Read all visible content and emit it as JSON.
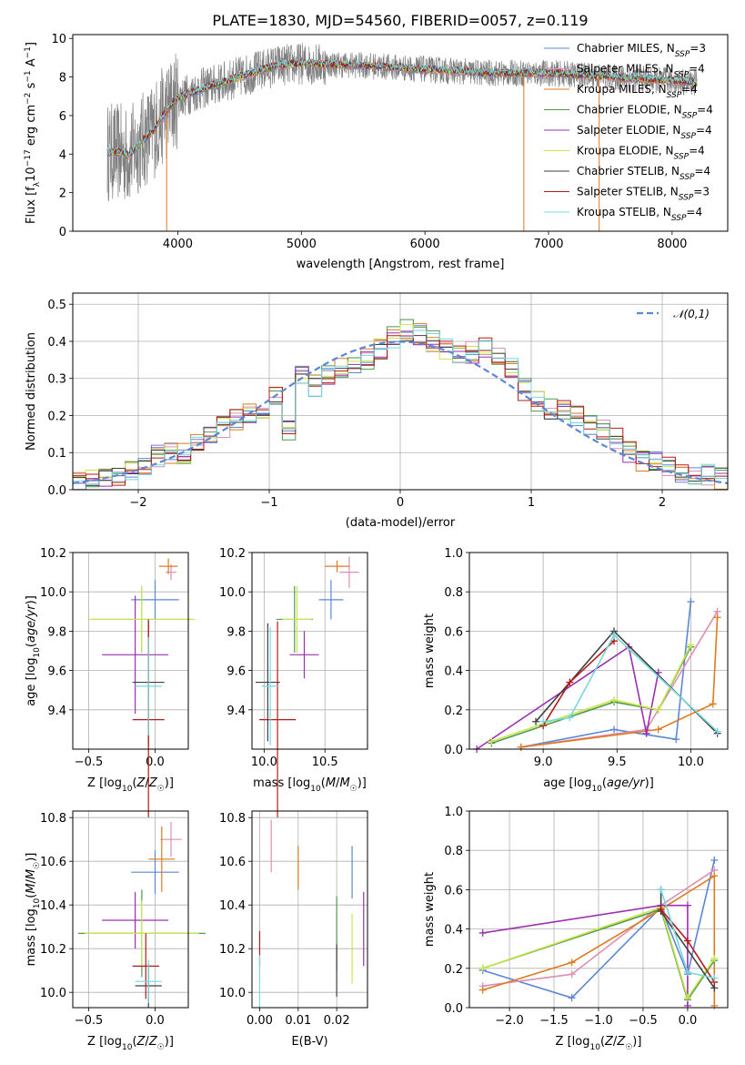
{
  "title": "PLATE=1830, MJD=54560, FIBERID=0057, z=0.119",
  "models": [
    {
      "name": "Chabrier MILES",
      "nssp": "3",
      "color": "#5B87D7"
    },
    {
      "name": "Salpeter MILES",
      "nssp": "4",
      "color": "#DE8EB8"
    },
    {
      "name": "Kroupa MILES",
      "nssp": "4",
      "color": "#E07A1C"
    },
    {
      "name": "Chabrier ELODIE",
      "nssp": "4",
      "color": "#4E9A4E"
    },
    {
      "name": "Salpeter ELODIE",
      "nssp": "4",
      "color": "#9B30B0"
    },
    {
      "name": "Kroupa ELODIE",
      "nssp": "4",
      "color": "#C8E64A"
    },
    {
      "name": "Chabrier STELIB",
      "nssp": "4",
      "color": "#404040"
    },
    {
      "name": "Salpeter STELIB",
      "nssp": "3",
      "color": "#B81818"
    },
    {
      "name": "Kroupa STELIB",
      "nssp": "4",
      "color": "#74D8DE"
    }
  ],
  "data_color": "#808080",
  "chart_data": [
    {
      "id": "spectrum",
      "type": "line",
      "xlabel": "wavelength [Angstrom, rest frame]",
      "ylabel": "Flux [f_λ 10^-17 erg cm^-2 s^-1 A^-1]",
      "xlim": [
        3150,
        8450
      ],
      "ylim": [
        0,
        10.2
      ],
      "xticks": [
        4000,
        5000,
        6000,
        7000,
        8000
      ],
      "yticks": [
        0,
        2,
        4,
        6,
        8,
        10
      ],
      "x_range": [
        3430,
        8200
      ],
      "model_profile": {
        "x": [
          3430,
          3520,
          3600,
          3700,
          3800,
          3900,
          4000,
          4200,
          4400,
          4600,
          4800,
          5000,
          5500,
          6000,
          6500,
          7000,
          7500,
          8000,
          8200
        ],
        "y": [
          4.1,
          4.1,
          3.9,
          4.6,
          5.2,
          6.2,
          6.9,
          7.4,
          7.8,
          8.2,
          8.6,
          8.7,
          8.6,
          8.4,
          8.2,
          8.2,
          8.0,
          7.8,
          7.7
        ]
      },
      "spikes": [
        {
          "x": 3910,
          "y": 0
        },
        {
          "x": 6800,
          "y": 0
        },
        {
          "x": 7410,
          "y": 0
        }
      ]
    },
    {
      "id": "residuals",
      "type": "line",
      "xlabel": "(data-model)/error",
      "ylabel": "Normed distribution",
      "xlim": [
        -2.5,
        2.5
      ],
      "ylim": [
        0,
        0.53
      ],
      "xticks": [
        -2,
        -1,
        0,
        1,
        2
      ],
      "yticks": [
        0.0,
        0.1,
        0.2,
        0.3,
        0.4,
        0.5
      ],
      "legend": "𝒩(0,1)",
      "bin_centers": [
        -2.45,
        -2.35,
        -2.25,
        -2.15,
        -2.05,
        -1.95,
        -1.85,
        -1.75,
        -1.65,
        -1.55,
        -1.45,
        -1.35,
        -1.25,
        -1.15,
        -1.05,
        -0.95,
        -0.85,
        -0.75,
        -0.65,
        -0.55,
        -0.45,
        -0.35,
        -0.25,
        -0.15,
        -0.05,
        0.05,
        0.15,
        0.25,
        0.35,
        0.45,
        0.55,
        0.65,
        0.75,
        0.85,
        0.95,
        1.05,
        1.15,
        1.25,
        1.35,
        1.45,
        1.55,
        1.65,
        1.75,
        1.85,
        1.95,
        2.05,
        2.15,
        2.25,
        2.35,
        2.45
      ],
      "histogram_mean": [
        0.03,
        0.03,
        0.03,
        0.04,
        0.05,
        0.07,
        0.09,
        0.1,
        0.1,
        0.12,
        0.15,
        0.17,
        0.19,
        0.21,
        0.21,
        0.25,
        0.16,
        0.31,
        0.28,
        0.31,
        0.33,
        0.34,
        0.35,
        0.38,
        0.41,
        0.43,
        0.42,
        0.4,
        0.38,
        0.36,
        0.37,
        0.38,
        0.36,
        0.33,
        0.27,
        0.24,
        0.22,
        0.22,
        0.2,
        0.17,
        0.16,
        0.14,
        0.1,
        0.08,
        0.08,
        0.06,
        0.05,
        0.04,
        0.04,
        0.03
      ]
    },
    {
      "id": "age_vs_Z",
      "type": "scatter",
      "xlabel": "Z [log10(Z/Z☉)]",
      "ylabel": "age [log10(age/yr)]",
      "xlim": [
        -0.62,
        0.25
      ],
      "ylim": [
        9.2,
        10.2
      ],
      "xticks": [
        -0.5,
        0.0
      ],
      "yticks": [
        9.4,
        9.6,
        9.8,
        10.0,
        10.2
      ],
      "points": [
        {
          "x": 0.0,
          "y": 9.96,
          "xerr": 0.18,
          "yerr": 0.1
        },
        {
          "x": 0.12,
          "y": 10.1,
          "xerr": 0.04,
          "yerr": 0.04
        },
        {
          "x": 0.1,
          "y": 10.13,
          "xerr": 0.07,
          "yerr": 0.04
        },
        {
          "x": -0.1,
          "y": 9.86,
          "xerr": 0.38,
          "yerr": 0.17
        },
        {
          "x": -0.15,
          "y": 9.68,
          "xerr": 0.25,
          "yerr": 0.3
        },
        {
          "x": -0.1,
          "y": 9.86,
          "xerr": 0.4,
          "yerr": 0.17
        },
        {
          "x": -0.05,
          "y": 9.54,
          "xerr": 0.12,
          "yerr": 0.32
        },
        {
          "x": -0.05,
          "y": 9.35,
          "xerr": 0.12,
          "yerr": 0.5
        },
        {
          "x": -0.05,
          "y": 9.52,
          "xerr": 0.1,
          "yerr": 0.25
        }
      ]
    },
    {
      "id": "age_vs_mass",
      "type": "scatter",
      "xlabel": "mass [log10(M/M☉)]",
      "ylabel": "",
      "xlim": [
        9.9,
        10.85
      ],
      "ylim": [
        9.2,
        10.2
      ],
      "xticks": [
        10.0,
        10.5
      ],
      "yticks": [
        9.4,
        9.6,
        9.8,
        10.0,
        10.2
      ],
      "points": [
        {
          "x": 10.55,
          "y": 9.96,
          "xerr": 0.1,
          "yerr": 0.1
        },
        {
          "x": 10.7,
          "y": 10.1,
          "xerr": 0.08,
          "yerr": 0.08
        },
        {
          "x": 10.6,
          "y": 10.13,
          "xerr": 0.1,
          "yerr": 0.03
        },
        {
          "x": 10.25,
          "y": 9.86,
          "xerr": 0.15,
          "yerr": 0.17
        },
        {
          "x": 10.33,
          "y": 9.68,
          "xerr": 0.12,
          "yerr": 0.12
        },
        {
          "x": 10.27,
          "y": 9.86,
          "xerr": 0.12,
          "yerr": 0.17
        },
        {
          "x": 10.03,
          "y": 9.54,
          "xerr": 0.1,
          "yerr": 0.3
        },
        {
          "x": 10.11,
          "y": 9.35,
          "xerr": 0.15,
          "yerr": 0.5
        },
        {
          "x": 10.05,
          "y": 9.52,
          "xerr": 0.07,
          "yerr": 0.3
        }
      ]
    },
    {
      "id": "mass_weight_vs_age",
      "type": "line",
      "xlabel": "age [log10(age/yr)]",
      "ylabel": "mass weight",
      "xlim": [
        8.5,
        10.25
      ],
      "ylim": [
        0,
        1
      ],
      "xticks": [
        9.0,
        9.5,
        10.0
      ],
      "yticks": [
        0.0,
        0.2,
        0.4,
        0.6,
        0.8,
        1.0
      ],
      "series": [
        {
          "x": [
            8.85,
            9.48,
            9.9,
            10.0
          ],
          "y": [
            0.01,
            0.1,
            0.05,
            0.75
          ]
        },
        {
          "x": [
            8.85,
            9.7,
            10.18
          ],
          "y": [
            0.01,
            0.1,
            0.7
          ]
        },
        {
          "x": [
            8.85,
            9.78,
            10.15,
            10.18
          ],
          "y": [
            0.01,
            0.1,
            0.23,
            0.67
          ]
        },
        {
          "x": [
            8.65,
            9.48,
            9.78,
            10.0
          ],
          "y": [
            0.03,
            0.24,
            0.2,
            0.52
          ]
        },
        {
          "x": [
            8.55,
            9.58,
            9.7,
            9.78
          ],
          "y": [
            0.0,
            0.52,
            0.08,
            0.39
          ]
        },
        {
          "x": [
            8.65,
            9.48,
            9.78,
            10.0
          ],
          "y": [
            0.04,
            0.25,
            0.2,
            0.53
          ]
        },
        {
          "x": [
            8.95,
            9.48,
            10.18
          ],
          "y": [
            0.14,
            0.6,
            0.08
          ]
        },
        {
          "x": [
            9.0,
            9.18,
            9.48
          ],
          "y": [
            0.12,
            0.34,
            0.55
          ]
        },
        {
          "x": [
            9.0,
            9.18,
            9.48,
            10.18
          ],
          "y": [
            0.14,
            0.16,
            0.58,
            0.09
          ]
        }
      ]
    },
    {
      "id": "mass_vs_Z",
      "type": "scatter",
      "xlabel": "Z [log10(Z/Z☉)]",
      "ylabel": "mass [log10(M/M☉)]",
      "xlim": [
        -0.62,
        0.25
      ],
      "ylim": [
        9.93,
        10.83
      ],
      "xticks": [
        -0.5,
        0.0
      ],
      "yticks": [
        10.0,
        10.2,
        10.4,
        10.6,
        10.8
      ],
      "points": [
        {
          "x": 0.0,
          "y": 10.55,
          "xerr": 0.18,
          "yerr": 0.1
        },
        {
          "x": 0.12,
          "y": 10.7,
          "xerr": 0.08,
          "yerr": 0.08
        },
        {
          "x": 0.05,
          "y": 10.61,
          "xerr": 0.1,
          "yerr": 0.15
        },
        {
          "x": -0.1,
          "y": 10.27,
          "xerr": 0.48,
          "yerr": 0.2
        },
        {
          "x": -0.15,
          "y": 10.33,
          "xerr": 0.25,
          "yerr": 0.13
        },
        {
          "x": -0.1,
          "y": 10.27,
          "xerr": 0.43,
          "yerr": 0.15
        },
        {
          "x": -0.05,
          "y": 10.03,
          "xerr": 0.1,
          "yerr": 0.1
        },
        {
          "x": -0.07,
          "y": 10.12,
          "xerr": 0.1,
          "yerr": 0.15
        },
        {
          "x": -0.05,
          "y": 10.05,
          "xerr": 0.1,
          "yerr": 0.1
        }
      ]
    },
    {
      "id": "mass_vs_ebv",
      "type": "scatter",
      "xlabel": "E(B-V)",
      "ylabel": "",
      "xlim": [
        -0.002,
        0.028
      ],
      "ylim": [
        9.93,
        10.83
      ],
      "xticks": [
        0.0,
        0.01,
        0.02
      ],
      "yticks": [
        10.0,
        10.2,
        10.4,
        10.6,
        10.8
      ],
      "points": [
        {
          "x": 0.024,
          "y": 10.55,
          "xerr": 0,
          "yerr": 0.12
        },
        {
          "x": 0.003,
          "y": 10.67,
          "xerr": 0,
          "yerr": 0.12
        },
        {
          "x": 0.01,
          "y": 10.57,
          "xerr": 0,
          "yerr": 0.1
        },
        {
          "x": 0.02,
          "y": 10.27,
          "xerr": 0,
          "yerr": 0.17
        },
        {
          "x": 0.027,
          "y": 10.29,
          "xerr": 0,
          "yerr": 0.17
        },
        {
          "x": 0.024,
          "y": 10.2,
          "xerr": 0,
          "yerr": 0.16
        },
        {
          "x": 0.02,
          "y": 10.1,
          "xerr": 0,
          "yerr": 0.12
        },
        {
          "x": 0.0,
          "y": 10.2,
          "xerr": 0,
          "yerr": 0.08
        },
        {
          "x": 0.0,
          "y": 10.05,
          "xerr": 0,
          "yerr": 0.12
        }
      ]
    },
    {
      "id": "mass_weight_vs_Z",
      "type": "line",
      "xlabel": "Z [log10(Z/Z☉)]",
      "ylabel": "mass weight",
      "xlim": [
        -2.45,
        0.45
      ],
      "ylim": [
        0,
        1
      ],
      "xticks": [
        -2.0,
        -1.5,
        -1.0,
        -0.5,
        0.0
      ],
      "yticks": [
        0.0,
        0.2,
        0.4,
        0.6,
        0.8,
        1.0
      ],
      "series": [
        {
          "x": [
            -2.3,
            -1.3,
            -0.3,
            0.0,
            0.3
          ],
          "y": [
            0.19,
            0.05,
            0.51,
            0.17,
            0.75
          ]
        },
        {
          "x": [
            -2.3,
            -1.3,
            -0.3,
            0.3
          ],
          "y": [
            0.11,
            0.17,
            0.52,
            0.7
          ]
        },
        {
          "x": [
            -2.3,
            -1.3,
            -0.3,
            0.3,
            0.3
          ],
          "y": [
            0.09,
            0.23,
            0.5,
            0.67,
            0.01
          ]
        },
        {
          "x": [
            -2.3,
            -0.3,
            0.0,
            0.3
          ],
          "y": [
            0.2,
            0.5,
            0.04,
            0.24
          ]
        },
        {
          "x": [
            -2.3,
            -0.3,
            0.0,
            0.0
          ],
          "y": [
            0.38,
            0.52,
            0.52,
            0.01
          ]
        },
        {
          "x": [
            -2.3,
            -0.3,
            0.0,
            0.3
          ],
          "y": [
            0.2,
            0.51,
            0.05,
            0.25
          ]
        },
        {
          "x": [
            -0.3,
            -0.3,
            0.3
          ],
          "y": [
            0.6,
            0.49,
            0.1
          ]
        },
        {
          "x": [
            -0.3,
            0.0,
            0.3
          ],
          "y": [
            0.5,
            0.34,
            0.13
          ]
        },
        {
          "x": [
            -0.3,
            0.0,
            0.3
          ],
          "y": [
            0.6,
            0.18,
            0.15
          ]
        }
      ]
    }
  ]
}
